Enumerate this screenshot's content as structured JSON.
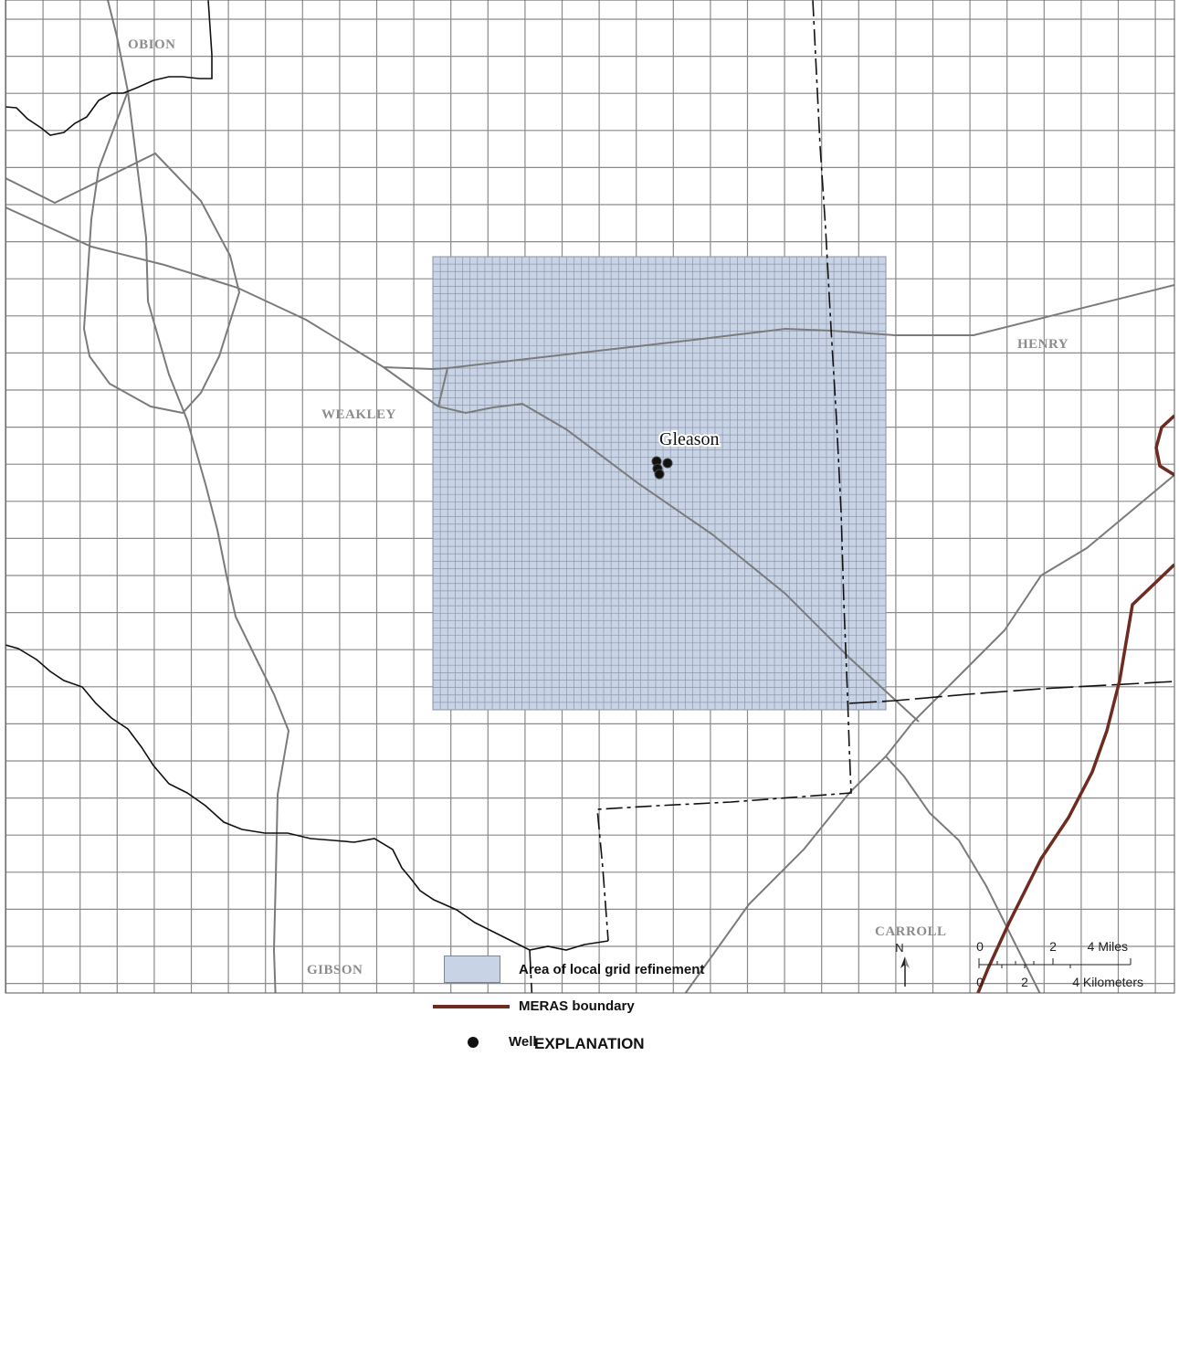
{
  "map": {
    "counties": [
      "OBION",
      "WEAKLEY",
      "HENRY",
      "CARROLL",
      "GIBSON"
    ],
    "town": "Gleason",
    "colors": {
      "grid": "#8a8a8a",
      "refinement_fill": "#c8d3e6",
      "roads": "#7b7b7b",
      "meras_boundary": "#6e2b1f",
      "county_boundary": "#111111"
    }
  },
  "legend": {
    "title": "EXPLANATION",
    "items": [
      {
        "label": "Area of local grid refinement",
        "symbol": "blue-swatch"
      },
      {
        "label": "MERAS boundary",
        "symbol": "brown-line"
      },
      {
        "label": "Well",
        "symbol": "black-dot"
      }
    ]
  },
  "scale": {
    "north": "N",
    "miles_ticks": [
      "0",
      "2",
      "4 Miles"
    ],
    "km_ticks": [
      "0",
      "2",
      "4 Kilometers"
    ]
  }
}
